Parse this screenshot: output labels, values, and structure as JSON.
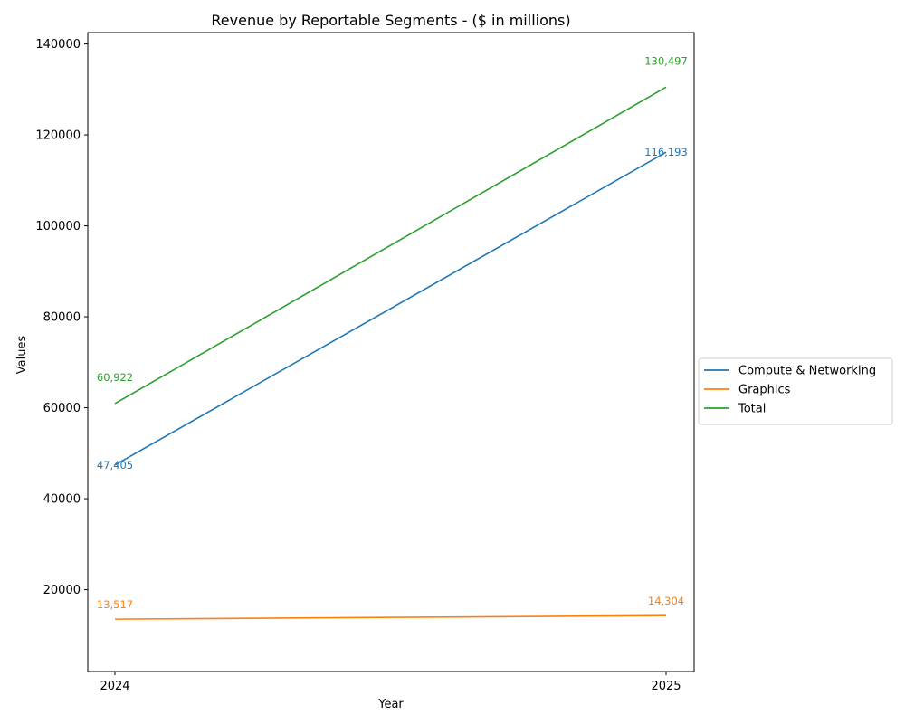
{
  "chart_data": {
    "type": "line",
    "title": "Revenue by Reportable Segments - ($ in millions)",
    "xlabel": "Year",
    "ylabel": "Values",
    "categories": [
      "2024",
      "2025"
    ],
    "ylim": [
      2000,
      142500
    ],
    "yticks": [
      20000,
      40000,
      60000,
      80000,
      100000,
      120000,
      140000
    ],
    "grid": false,
    "legend_position": "right-center",
    "series": [
      {
        "name": "Compute & Networking",
        "color": "#1f77b4",
        "values": [
          47405,
          116193
        ],
        "labels": [
          "47,405",
          "116,193"
        ]
      },
      {
        "name": "Graphics",
        "color": "#ff7f0e",
        "values": [
          13517,
          14304
        ],
        "labels": [
          "13,517",
          "14,304"
        ]
      },
      {
        "name": "Total",
        "color": "#2ca02c",
        "values": [
          60922,
          130497
        ],
        "labels": [
          "60,922",
          "130,497"
        ]
      }
    ]
  }
}
